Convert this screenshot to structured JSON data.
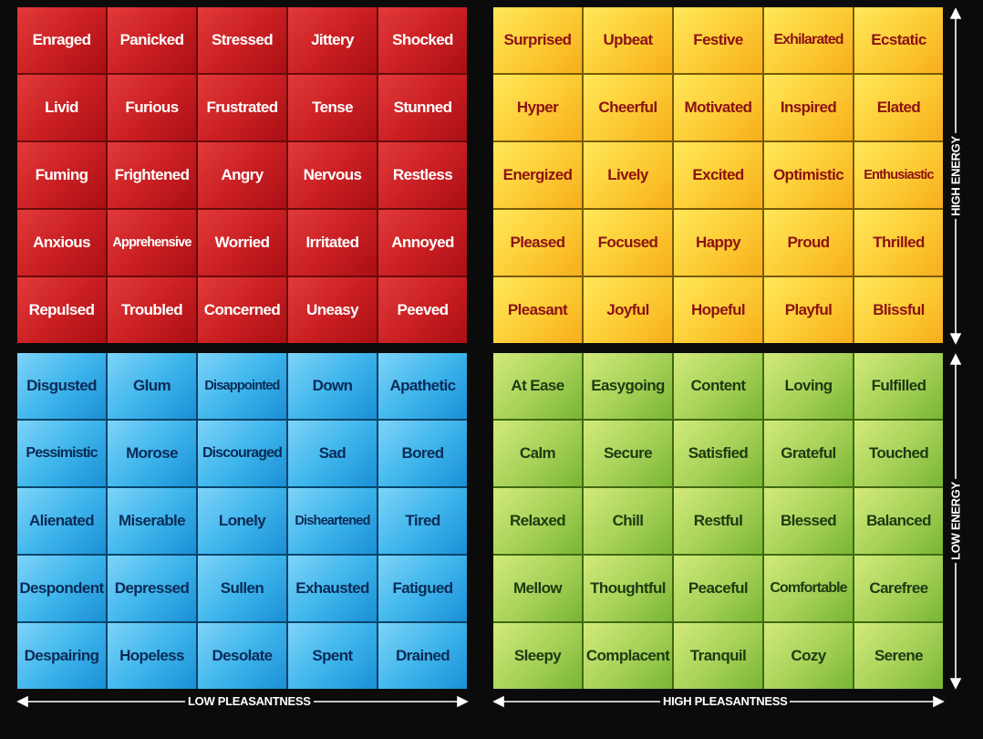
{
  "quadrants": {
    "red": [
      [
        "Enraged",
        "Panicked",
        "Stressed",
        "Jittery",
        "Shocked"
      ],
      [
        "Livid",
        "Furious",
        "Frustrated",
        "Tense",
        "Stunned"
      ],
      [
        "Fuming",
        "Frightened",
        "Angry",
        "Nervous",
        "Restless"
      ],
      [
        "Anxious",
        "Apprehensive",
        "Worried",
        "Irritated",
        "Annoyed"
      ],
      [
        "Repulsed",
        "Troubled",
        "Concerned",
        "Uneasy",
        "Peeved"
      ]
    ],
    "yellow": [
      [
        "Surprised",
        "Upbeat",
        "Festive",
        "Exhilarated",
        "Ecstatic"
      ],
      [
        "Hyper",
        "Cheerful",
        "Motivated",
        "Inspired",
        "Elated"
      ],
      [
        "Energized",
        "Lively",
        "Excited",
        "Optimistic",
        "Enthusiastic"
      ],
      [
        "Pleased",
        "Focused",
        "Happy",
        "Proud",
        "Thrilled"
      ],
      [
        "Pleasant",
        "Joyful",
        "Hopeful",
        "Playful",
        "Blissful"
      ]
    ],
    "blue": [
      [
        "Disgusted",
        "Glum",
        "Disappointed",
        "Down",
        "Apathetic"
      ],
      [
        "Pessimistic",
        "Morose",
        "Discouraged",
        "Sad",
        "Bored"
      ],
      [
        "Alienated",
        "Miserable",
        "Lonely",
        "Disheartened",
        "Tired"
      ],
      [
        "Despondent",
        "Depressed",
        "Sullen",
        "Exhausted",
        "Fatigued"
      ],
      [
        "Despairing",
        "Hopeless",
        "Desolate",
        "Spent",
        "Drained"
      ]
    ],
    "green": [
      [
        "At Ease",
        "Easygoing",
        "Content",
        "Loving",
        "Fulfilled"
      ],
      [
        "Calm",
        "Secure",
        "Satisfied",
        "Grateful",
        "Touched"
      ],
      [
        "Relaxed",
        "Chill",
        "Restful",
        "Blessed",
        "Balanced"
      ],
      [
        "Mellow",
        "Thoughtful",
        "Peaceful",
        "Comfortable",
        "Carefree"
      ],
      [
        "Sleepy",
        "Complacent",
        "Tranquil",
        "Cozy",
        "Serene"
      ]
    ]
  },
  "axes": {
    "low_pleasantness": "LOW PLEASANTNESS",
    "high_pleasantness": "HIGH PLEASANTNESS",
    "high_energy": "HIGH ENERGY",
    "low_energy": "LOW ENERGY"
  },
  "colors": {
    "red": "#c81e22",
    "yellow": "#fccb33",
    "blue": "#3fb6ec",
    "green": "#a9d35b",
    "background": "#0b0b0b"
  }
}
